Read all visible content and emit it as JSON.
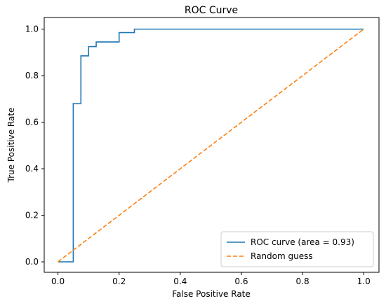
{
  "chart_data": {
    "type": "line",
    "title": "ROC Curve",
    "xlabel": "False Positive Rate",
    "ylabel": "True Positive Rate",
    "xlim": [
      -0.045,
      1.05
    ],
    "ylim": [
      -0.045,
      1.05
    ],
    "xticks": [
      0.0,
      0.2,
      0.4,
      0.6,
      0.8,
      1.0
    ],
    "yticks": [
      0.0,
      0.2,
      0.4,
      0.6,
      0.8,
      1.0
    ],
    "xtick_labels": [
      "0.0",
      "0.2",
      "0.4",
      "0.6",
      "0.8",
      "1.0"
    ],
    "ytick_labels": [
      "0.0",
      "0.2",
      "0.4",
      "0.6",
      "0.8",
      "1.0"
    ],
    "grid": false,
    "legend_position": "lower-right",
    "series": [
      {
        "name": "ROC curve (area = 0.93)",
        "color": "#1f77b4",
        "line_style": "solid",
        "x": [
          0.0,
          0.05,
          0.05,
          0.075,
          0.075,
          0.1,
          0.1,
          0.125,
          0.125,
          0.2,
          0.2,
          0.25,
          0.25,
          1.0
        ],
        "y": [
          0.0,
          0.0,
          0.68,
          0.68,
          0.885,
          0.885,
          0.925,
          0.925,
          0.945,
          0.945,
          0.985,
          0.985,
          1.0,
          1.0
        ]
      },
      {
        "name": "Random guess",
        "color": "#ff7f0e",
        "line_style": "dashed",
        "x": [
          0.0,
          1.0
        ],
        "y": [
          0.0,
          1.0
        ]
      }
    ]
  }
}
